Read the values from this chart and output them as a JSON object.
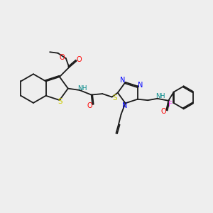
{
  "background_color": "#eeeeee",
  "bond_color": "#1a1a1a",
  "atom_colors": {
    "O": "#ff0000",
    "S": "#cccc00",
    "N": "#0000ff",
    "F": "#ff44ff",
    "H": "#008888",
    "C": "#1a1a1a"
  },
  "figsize": [
    3.0,
    3.0
  ],
  "dpi": 100
}
